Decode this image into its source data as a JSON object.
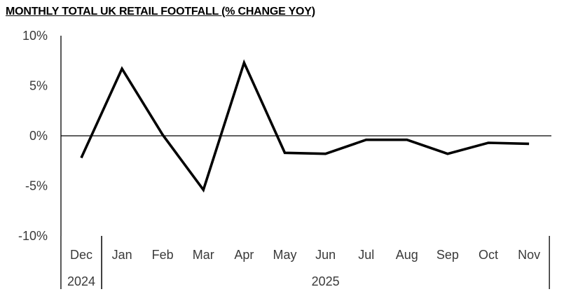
{
  "chart_data": {
    "type": "line",
    "title": "MONTHLY TOTAL UK RETAIL FOOTFALL (% CHANGE YOY)",
    "xlabel": "",
    "ylabel": "",
    "categories": [
      "Dec",
      "Jan",
      "Feb",
      "Mar",
      "Apr",
      "May",
      "Jun",
      "Jul",
      "Aug",
      "Sep",
      "Oct",
      "Nov"
    ],
    "year_groups": [
      {
        "label": "2024",
        "categories": [
          "Dec"
        ]
      },
      {
        "label": "2025",
        "categories": [
          "Jan",
          "Feb",
          "Mar",
          "Apr",
          "May",
          "Jun",
          "Jul",
          "Aug",
          "Sep",
          "Oct",
          "Nov"
        ]
      }
    ],
    "series": [
      {
        "values": [
          -2.2,
          6.7,
          0.1,
          -5.4,
          7.3,
          -1.7,
          -1.8,
          -0.4,
          -0.4,
          -1.8,
          -0.7,
          -0.8
        ]
      }
    ],
    "ylim": [
      -10,
      10
    ],
    "yticks": [
      10,
      5,
      0,
      -5,
      -10
    ],
    "ytick_labels": [
      "10%",
      "5%",
      "0%",
      "-5%",
      "-10%"
    ],
    "grid": false,
    "legend": "none",
    "line_color": "#000000"
  }
}
